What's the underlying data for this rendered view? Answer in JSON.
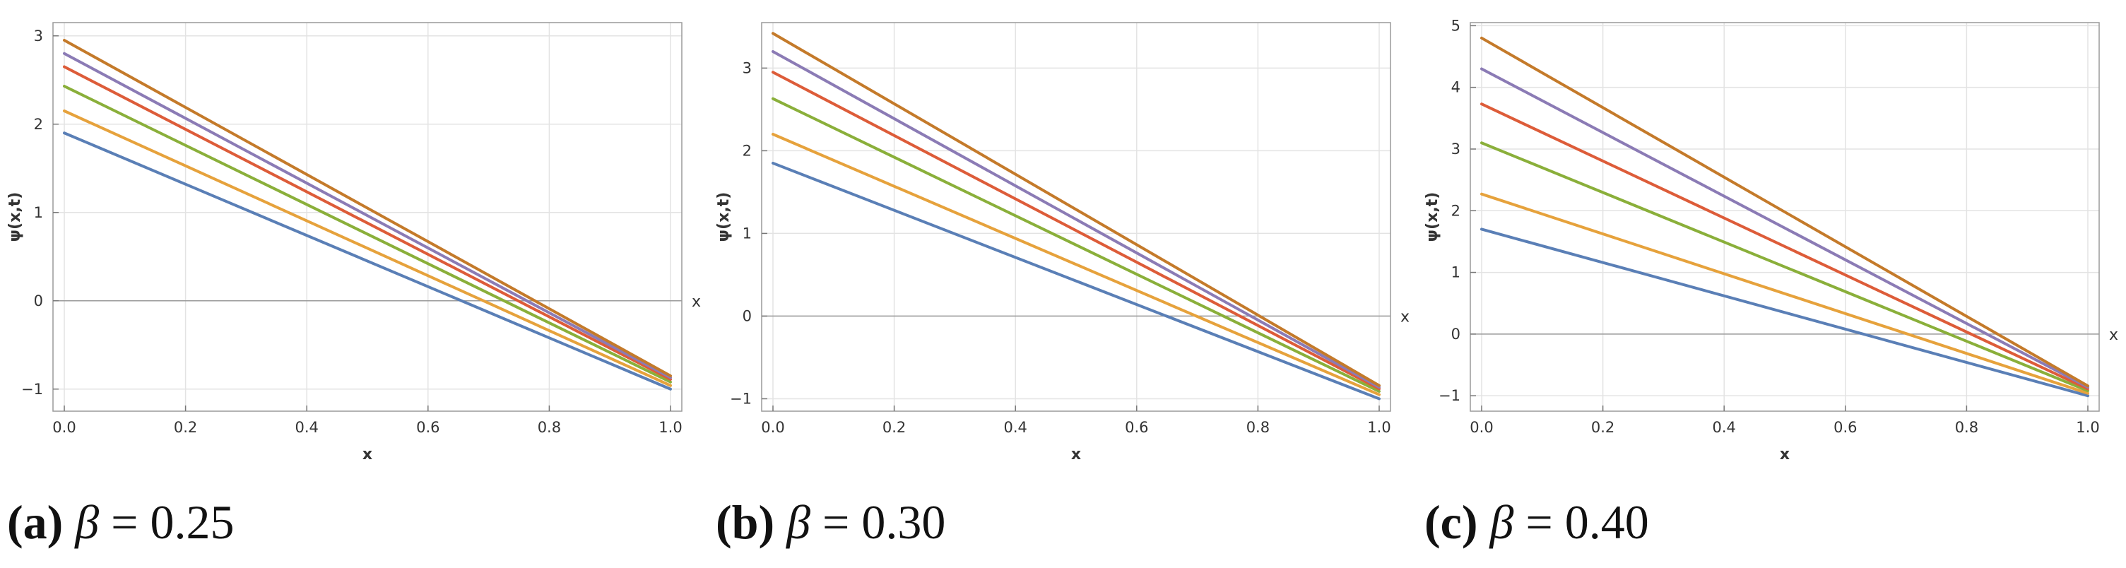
{
  "chart_data": [
    {
      "type": "line",
      "caption_label": "(a)",
      "caption_beta": "β",
      "caption_rest": " = 0.25",
      "xlabel": "x",
      "xlabel_right": "x",
      "ylabel": "ψ(x,t)",
      "xlim": [
        0,
        1
      ],
      "ylim": [
        -1.25,
        3.15
      ],
      "xticks": [
        0.0,
        0.2,
        0.4,
        0.6,
        0.8,
        1.0
      ],
      "xtick_labels": [
        "0.0",
        "0.2",
        "0.4",
        "0.6",
        "0.8",
        "1.0"
      ],
      "yticks": [
        -1,
        0,
        1,
        2,
        3
      ],
      "ytick_labels": [
        "−1",
        "0",
        "1",
        "2",
        "3"
      ],
      "grid": true,
      "series": [
        {
          "color": "#5a7fb6",
          "x": [
            0,
            1
          ],
          "y": [
            1.9,
            -1.0
          ]
        },
        {
          "color": "#e6a23c",
          "x": [
            0,
            1
          ],
          "y": [
            2.15,
            -0.96
          ]
        },
        {
          "color": "#8aaf3a",
          "x": [
            0,
            1
          ],
          "y": [
            2.43,
            -0.92
          ]
        },
        {
          "color": "#dd5c39",
          "x": [
            0,
            1
          ],
          "y": [
            2.65,
            -0.89
          ]
        },
        {
          "color": "#8b7bb5",
          "x": [
            0,
            1
          ],
          "y": [
            2.8,
            -0.87
          ]
        },
        {
          "color": "#c47a2a",
          "x": [
            0,
            1
          ],
          "y": [
            2.95,
            -0.85
          ]
        }
      ]
    },
    {
      "type": "line",
      "caption_label": "(b)",
      "caption_beta": "β",
      "caption_rest": " = 0.30",
      "xlabel": "x",
      "xlabel_right": "x",
      "ylabel": "ψ(x,t)",
      "xlim": [
        0,
        1
      ],
      "ylim": [
        -1.15,
        3.55
      ],
      "xticks": [
        0.0,
        0.2,
        0.4,
        0.6,
        0.8,
        1.0
      ],
      "xtick_labels": [
        "0.0",
        "0.2",
        "0.4",
        "0.6",
        "0.8",
        "1.0"
      ],
      "yticks": [
        -1,
        0,
        1,
        2,
        3
      ],
      "ytick_labels": [
        "−1",
        "0",
        "1",
        "2",
        "3"
      ],
      "grid": true,
      "series": [
        {
          "color": "#5a7fb6",
          "x": [
            0,
            1
          ],
          "y": [
            1.85,
            -1.0
          ]
        },
        {
          "color": "#e6a23c",
          "x": [
            0,
            1
          ],
          "y": [
            2.2,
            -0.95
          ]
        },
        {
          "color": "#8aaf3a",
          "x": [
            0,
            1
          ],
          "y": [
            2.63,
            -0.91
          ]
        },
        {
          "color": "#dd5c39",
          "x": [
            0,
            1
          ],
          "y": [
            2.95,
            -0.88
          ]
        },
        {
          "color": "#8b7bb5",
          "x": [
            0,
            1
          ],
          "y": [
            3.2,
            -0.86
          ]
        },
        {
          "color": "#c47a2a",
          "x": [
            0,
            1
          ],
          "y": [
            3.42,
            -0.84
          ]
        }
      ]
    },
    {
      "type": "line",
      "caption_label": "(c)",
      "caption_beta": "β",
      "caption_rest": " = 0.40",
      "xlabel": "x",
      "xlabel_right": "x",
      "ylabel": "ψ(x,t)",
      "xlim": [
        0,
        1
      ],
      "ylim": [
        -1.25,
        5.05
      ],
      "xticks": [
        0.0,
        0.2,
        0.4,
        0.6,
        0.8,
        1.0
      ],
      "xtick_labels": [
        "0.0",
        "0.2",
        "0.4",
        "0.6",
        "0.8",
        "1.0"
      ],
      "yticks": [
        -1,
        0,
        1,
        2,
        3,
        4,
        5
      ],
      "ytick_labels": [
        "−1",
        "0",
        "1",
        "2",
        "3",
        "4",
        "5"
      ],
      "grid": true,
      "series": [
        {
          "color": "#5a7fb6",
          "x": [
            0,
            1
          ],
          "y": [
            1.7,
            -1.0
          ]
        },
        {
          "color": "#e6a23c",
          "x": [
            0,
            1
          ],
          "y": [
            2.27,
            -0.96
          ]
        },
        {
          "color": "#8aaf3a",
          "x": [
            0,
            1
          ],
          "y": [
            3.1,
            -0.92
          ]
        },
        {
          "color": "#dd5c39",
          "x": [
            0,
            1
          ],
          "y": [
            3.73,
            -0.89
          ]
        },
        {
          "color": "#8b7bb5",
          "x": [
            0,
            1
          ],
          "y": [
            4.3,
            -0.86
          ]
        },
        {
          "color": "#c47a2a",
          "x": [
            0,
            1
          ],
          "y": [
            4.8,
            -0.84
          ]
        }
      ]
    }
  ]
}
